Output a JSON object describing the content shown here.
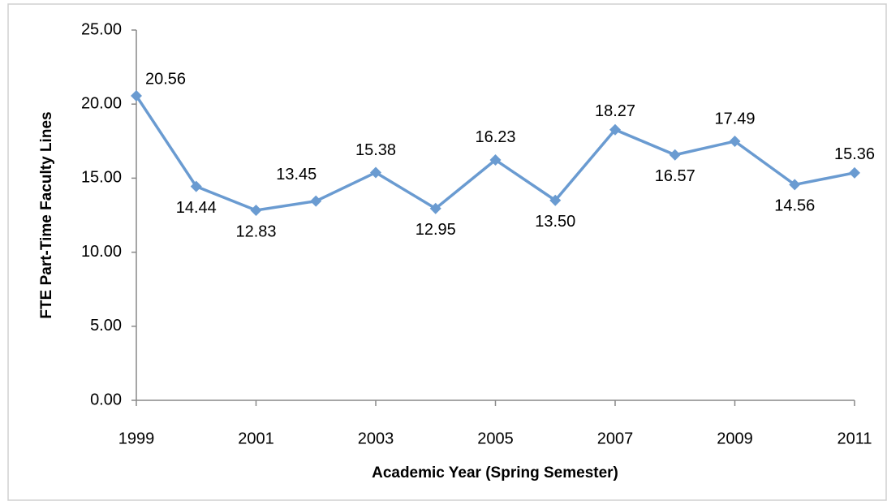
{
  "chart_data": {
    "type": "line",
    "x_label": "Academic Year (Spring Semester)",
    "y_label": "FTE Part-Time Faculty Lines",
    "x": [
      1999,
      2000,
      2001,
      2002,
      2003,
      2004,
      2005,
      2006,
      2007,
      2008,
      2009,
      2010,
      2011
    ],
    "xlim": [
      1999,
      2011
    ],
    "xticks": [
      1999,
      2001,
      2003,
      2005,
      2007,
      2009,
      2011
    ],
    "ylim": [
      0,
      25
    ],
    "yticks": [
      {
        "value": 0,
        "label": "0.00"
      },
      {
        "value": 5,
        "label": "5.00"
      },
      {
        "value": 10,
        "label": "10.00"
      },
      {
        "value": 15,
        "label": "15.00"
      },
      {
        "value": 20,
        "label": "20.00"
      },
      {
        "value": 25,
        "label": "25.00"
      }
    ],
    "grid": false,
    "series": [
      {
        "color": "#6a9bd1",
        "values": [
          20.56,
          14.44,
          12.83,
          13.45,
          15.38,
          12.95,
          16.23,
          13.5,
          18.27,
          16.57,
          17.49,
          14.56,
          15.36
        ],
        "value_labels": [
          "20.56",
          "14.44",
          "12.83",
          "13.45",
          "15.38",
          "12.95",
          "16.23",
          "13.50",
          "18.27",
          "16.57",
          "17.49",
          "14.56",
          "15.36"
        ]
      }
    ]
  }
}
